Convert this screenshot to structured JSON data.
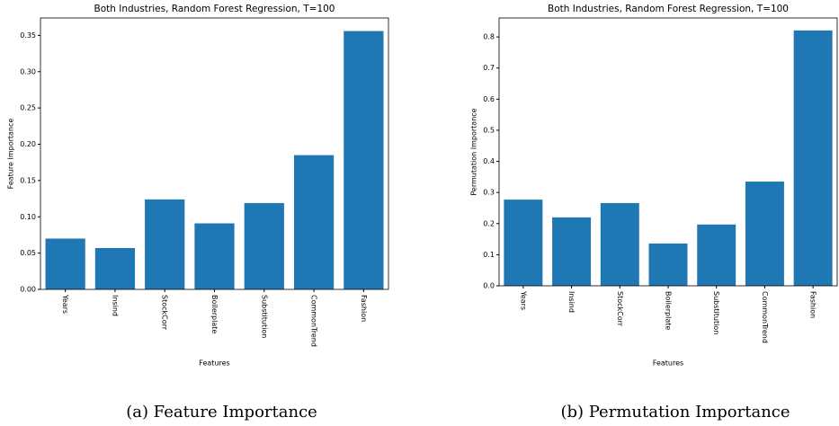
{
  "chart_data": [
    {
      "type": "bar",
      "title": "Both Industries, Random Forest Regression, T=100",
      "x_label": "Features",
      "y_label": "Feature Importance",
      "caption": "(a) Feature Importance",
      "categories": [
        "Years",
        "Insind",
        "StockCorr",
        "Boilerplate",
        "Substitution",
        "CommonTrend",
        "Fashion"
      ],
      "values": [
        0.07,
        0.057,
        0.124,
        0.091,
        0.119,
        0.185,
        0.356
      ],
      "color": "#1f77b4",
      "ylim": [
        0,
        0.374
      ],
      "yticks": [
        {
          "value": 0,
          "label": "0.00"
        },
        0.05,
        {
          "value": 0.1,
          "label": "0.10"
        },
        0.15,
        {
          "value": 0.2,
          "label": "0.20"
        },
        0.25,
        {
          "value": 0.3,
          "label": "0.30"
        },
        0.35
      ]
    },
    {
      "type": "bar",
      "title": "Both Industries, Random Forest Regression, T=100",
      "x_label": "Features",
      "y_label": "Permutation Importance",
      "caption": "(b) Permutation Importance",
      "categories": [
        "Years",
        "Insind",
        "StockCorr",
        "Boilerplate",
        "Substitution",
        "CommonTrend",
        "Fashion"
      ],
      "values": [
        0.277,
        0.22,
        0.266,
        0.136,
        0.197,
        0.335,
        0.821
      ],
      "color": "#1f77b4",
      "ylim": [
        0,
        0.861
      ],
      "yticks": [
        {
          "value": 0,
          "label": "0.0"
        },
        0.1,
        0.2,
        0.3,
        0.4,
        0.5,
        0.6,
        0.7,
        0.8
      ]
    }
  ]
}
